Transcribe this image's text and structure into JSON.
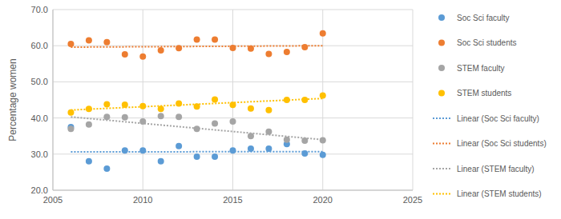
{
  "chart_data": {
    "type": "scatter",
    "x_label": null,
    "y_label": "Percentage women",
    "x": [
      2006,
      2007,
      2008,
      2009,
      2010,
      2011,
      2012,
      2013,
      2014,
      2015,
      2016,
      2017,
      2018,
      2019,
      2020
    ],
    "series": [
      {
        "name": "Soc Sci faculty",
        "color": "#5b9bd5",
        "type": "scatter",
        "marker": "circle",
        "values": [
          37.5,
          28.0,
          26.0,
          31.0,
          31.0,
          28.0,
          32.2,
          29.3,
          29.3,
          31.0,
          31.5,
          31.5,
          32.8,
          30.2,
          29.8
        ]
      },
      {
        "name": "Soc Sci students",
        "color": "#ed7d31",
        "type": "scatter",
        "marker": "circle",
        "values": [
          60.5,
          61.5,
          61.0,
          57.6,
          57.0,
          58.7,
          59.3,
          61.7,
          61.7,
          59.4,
          59.2,
          57.7,
          58.3,
          59.6,
          63.4
        ]
      },
      {
        "name": "STEM faculty",
        "color": "#a5a5a5",
        "type": "scatter",
        "marker": "circle",
        "values": [
          37.0,
          38.2,
          40.3,
          40.2,
          39.0,
          40.5,
          40.3,
          37.0,
          38.5,
          39.0,
          35.0,
          36.2,
          34.0,
          33.7,
          33.8
        ]
      },
      {
        "name": "STEM students",
        "color": "#ffc000",
        "type": "scatter",
        "marker": "circle",
        "values": [
          41.5,
          42.5,
          43.8,
          43.7,
          43.3,
          42.5,
          44.0,
          43.2,
          45.1,
          43.6,
          42.6,
          42.2,
          45.0,
          45.0,
          46.2
        ]
      },
      {
        "name": "Linear (Soc Sci faculty)",
        "color": "#5b9bd5",
        "type": "line",
        "line_style": "dotted",
        "x": [
          2006,
          2020
        ],
        "values": [
          30.6,
          30.7
        ]
      },
      {
        "name": "Linear (Soc Sci students)",
        "color": "#ed7d31",
        "type": "line",
        "line_style": "dotted",
        "x": [
          2006,
          2020
        ],
        "values": [
          59.6,
          60.0
        ]
      },
      {
        "name": "Linear (STEM faculty)",
        "color": "#a5a5a5",
        "type": "line",
        "line_style": "dotted",
        "x": [
          2006,
          2020
        ],
        "values": [
          40.3,
          34.0
        ]
      },
      {
        "name": "Linear (STEM students)",
        "color": "#ffc000",
        "type": "line",
        "line_style": "dotted",
        "x": [
          2006,
          2020
        ],
        "values": [
          42.2,
          45.4
        ]
      }
    ],
    "xlim": [
      2005,
      2025
    ],
    "xticks": [
      2005,
      2010,
      2015,
      2020,
      2025
    ],
    "ylim": [
      20,
      70
    ],
    "yticks": [
      {
        "value": 20,
        "label": "20.0"
      },
      {
        "value": 30,
        "label": "30.0"
      },
      {
        "value": 40,
        "label": "40.0"
      },
      {
        "value": 50,
        "label": "50.0"
      },
      {
        "value": 60,
        "label": "60.0"
      },
      {
        "value": 70,
        "label": "70.0"
      }
    ],
    "grid": true,
    "legend": "right"
  }
}
